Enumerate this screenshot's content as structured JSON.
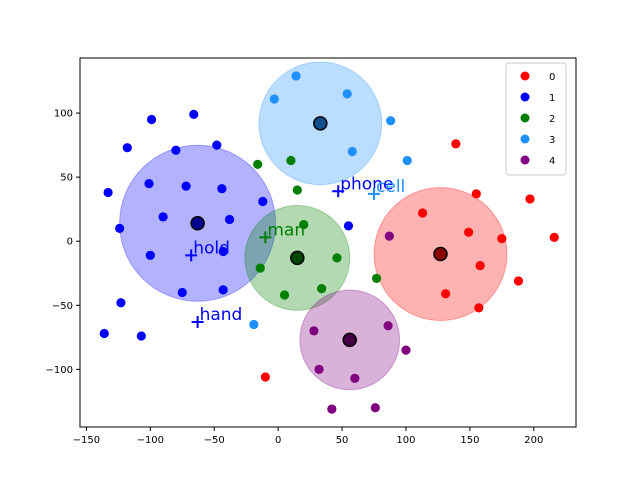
{
  "chart_data": {
    "type": "scatter",
    "title": "",
    "xlabel": "",
    "ylabel": "",
    "xlim": [
      -155,
      233
    ],
    "ylim": [
      -145,
      143
    ],
    "xticks": [
      -150,
      -100,
      -50,
      0,
      50,
      100,
      150,
      200
    ],
    "yticks": [
      -100,
      -50,
      0,
      50,
      100
    ],
    "xtick_labels": [
      "−150",
      "−100",
      "−50",
      "0",
      "50",
      "100",
      "150",
      "200"
    ],
    "ytick_labels": [
      "−100",
      "−50",
      "0",
      "50",
      "100"
    ],
    "legend_position": "top-right",
    "series": [
      {
        "name": "0",
        "color": "#ff0000",
        "points": [
          [
            139,
            76
          ],
          [
            155,
            37
          ],
          [
            197,
            33
          ],
          [
            113,
            22
          ],
          [
            149,
            7
          ],
          [
            175,
            2
          ],
          [
            216,
            3
          ],
          [
            158,
            -19
          ],
          [
            157,
            -52
          ],
          [
            188,
            -31
          ],
          [
            131,
            -41
          ],
          [
            -10,
            -106
          ]
        ],
        "centroid": [
          127,
          -10
        ],
        "radius": 52
      },
      {
        "name": "1",
        "color": "#0000ff",
        "points": [
          [
            -99,
            95
          ],
          [
            -66,
            99
          ],
          [
            -118,
            73
          ],
          [
            -48,
            75
          ],
          [
            -80,
            71
          ],
          [
            -133,
            38
          ],
          [
            -101,
            45
          ],
          [
            -72,
            43
          ],
          [
            -44,
            41
          ],
          [
            -90,
            19
          ],
          [
            -38,
            17
          ],
          [
            -124,
            10
          ],
          [
            -100,
            -11
          ],
          [
            -43,
            -8
          ],
          [
            -12,
            31
          ],
          [
            55,
            12
          ],
          [
            -123,
            -48
          ],
          [
            -75,
            -40
          ],
          [
            -43,
            -38
          ],
          [
            -107,
            -74
          ],
          [
            -136,
            -72
          ]
        ],
        "centroid": [
          -63,
          14
        ],
        "radius": 61
      },
      {
        "name": "2",
        "color": "#008000",
        "points": [
          [
            -16,
            60
          ],
          [
            15,
            40
          ],
          [
            10,
            63
          ],
          [
            20,
            13
          ],
          [
            -14,
            -21
          ],
          [
            46,
            -13
          ],
          [
            77,
            -29
          ],
          [
            5,
            -42
          ],
          [
            34,
            -37
          ]
        ],
        "centroid": [
          15,
          -13
        ],
        "radius": 41
      },
      {
        "name": "3",
        "color": "#1e90ff",
        "points": [
          [
            14,
            129
          ],
          [
            54,
            115
          ],
          [
            -3,
            111
          ],
          [
            88,
            94
          ],
          [
            58,
            70
          ],
          [
            101,
            63
          ],
          [
            -19,
            -65
          ]
        ],
        "centroid": [
          33,
          92
        ],
        "radius": 48
      },
      {
        "name": "4",
        "color": "#800080",
        "points": [
          [
            87,
            4
          ],
          [
            86,
            -66
          ],
          [
            28,
            -70
          ],
          [
            100,
            -85
          ],
          [
            32,
            -100
          ],
          [
            60,
            -107
          ],
          [
            42,
            -131
          ],
          [
            76,
            -130
          ]
        ],
        "centroid": [
          56,
          -77
        ],
        "radius": 39
      }
    ],
    "annotations": [
      {
        "text": "phone",
        "x": 47,
        "y": 39,
        "color": "#0000ff"
      },
      {
        "text": "cell",
        "x": 75,
        "y": 37,
        "color": "#1e90ff"
      },
      {
        "text": "man",
        "x": -10,
        "y": 3,
        "color": "#008000"
      },
      {
        "text": "hold",
        "x": -68,
        "y": -11,
        "color": "#0000ff"
      },
      {
        "text": "hand",
        "x": -63,
        "y": -63,
        "color": "#0000ff"
      }
    ]
  }
}
